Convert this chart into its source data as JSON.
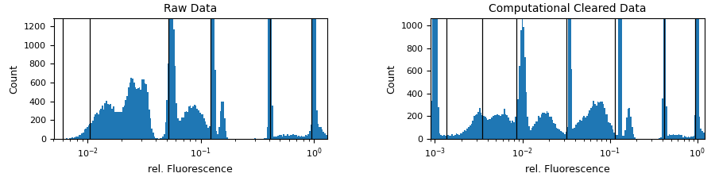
{
  "title_left": "Raw Data",
  "title_right": "Computational Cleared Data",
  "xlabel": "rel. Fluorescence",
  "ylabel": "Count",
  "bar_color": "#1f77b4",
  "left_xlim": [
    0.005,
    1.3
  ],
  "right_xlim": [
    0.0009,
    1.2
  ],
  "left_ylim": [
    0,
    1280
  ],
  "right_ylim": [
    0,
    1060
  ],
  "left_vlines": [
    0.006,
    0.0105,
    0.052,
    0.122,
    0.41,
    0.95
  ],
  "right_vlines": [
    0.00135,
    0.0035,
    0.0085,
    0.032,
    0.115,
    0.42,
    0.95
  ],
  "left_yticks": [
    0,
    200,
    400,
    600,
    800,
    1000,
    1200
  ],
  "right_yticks": [
    0,
    200,
    400,
    600,
    800,
    1000
  ],
  "num_bins": 200
}
